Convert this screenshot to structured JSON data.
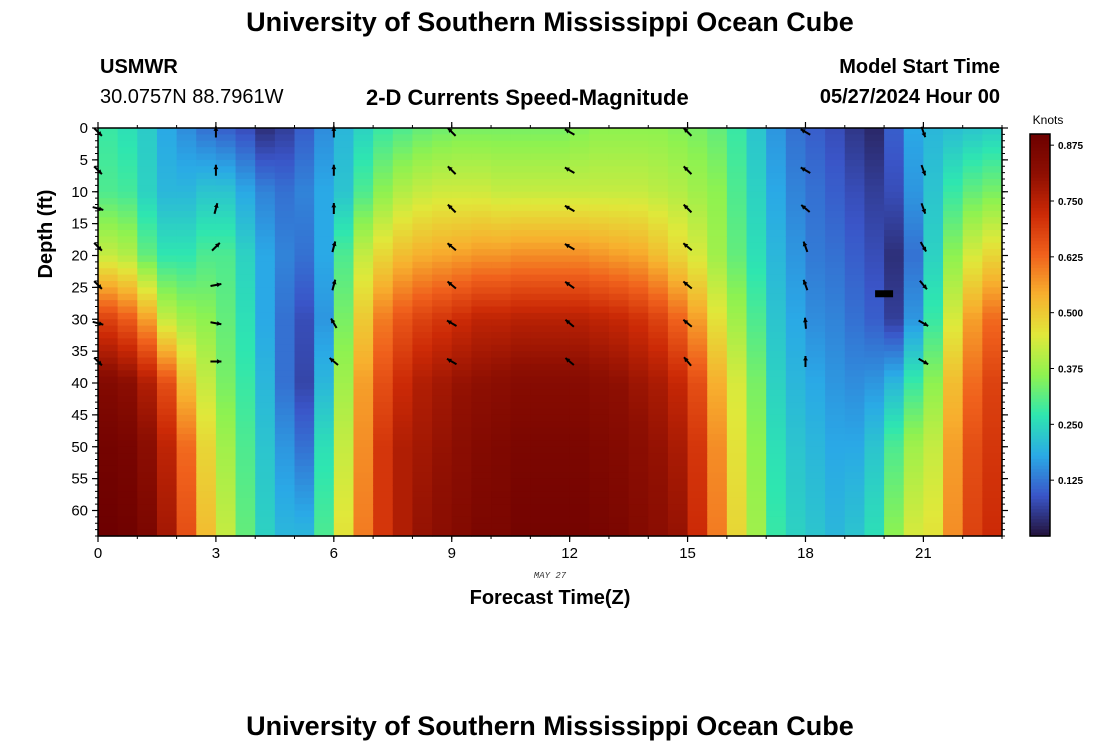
{
  "header": {
    "title": "University of Southern Mississippi Ocean Cube",
    "station_id": "USMWR",
    "coordinates": "30.0757N  88.7961W",
    "plot_type": "2-D Currents Speed-Magnitude",
    "model_start_label": "Model Start Time",
    "model_start_value": "05/27/2024 Hour 00"
  },
  "footer": {
    "title": "University of Southern Mississippi Ocean Cube"
  },
  "chart_data": {
    "type": "heatmap",
    "title": "2-D Currents Speed-Magnitude",
    "xlabel": "Forecast Time(Z)",
    "ylabel": "Depth (ft)",
    "date_label": "MAY 27",
    "x_ticks": [
      0,
      3,
      6,
      9,
      12,
      15,
      18,
      21
    ],
    "y_ticks": [
      0,
      5,
      10,
      15,
      20,
      25,
      30,
      35,
      40,
      45,
      50,
      55,
      60
    ],
    "xlim": [
      0,
      23
    ],
    "ylim": [
      0,
      64
    ],
    "colorbar": {
      "label": "Knots",
      "range": [
        0,
        0.9
      ],
      "ticks": [
        "0.125",
        "0.250",
        "0.375",
        "0.500",
        "0.625",
        "0.750",
        "0.875"
      ],
      "colors": [
        "#23123a",
        "#3a55c8",
        "#2aa9e6",
        "#2ee6b0",
        "#8ef250",
        "#e0e83a",
        "#f7b02e",
        "#f0611c",
        "#cc2a06",
        "#8e0f02",
        "#6d0000"
      ]
    },
    "speed_profiles": {
      "depth_nodes": [
        0,
        10,
        20,
        30,
        40,
        50,
        64
      ],
      "hours": [
        0,
        0.5,
        1,
        1.5,
        2,
        2.5,
        3,
        3.5,
        4,
        4.5,
        5,
        5.5,
        6,
        6.5,
        7,
        7.5,
        8,
        8.5,
        9,
        9.5,
        10,
        10.5,
        11,
        11.5,
        12,
        12.5,
        13,
        13.5,
        14,
        14.5,
        15,
        15.5,
        16,
        16.5,
        17,
        17.5,
        18,
        18.5,
        19,
        19.5,
        20,
        20.5,
        21,
        21.5,
        22,
        22.5
      ],
      "knots": [
        [
          0.28,
          0.3,
          0.42,
          0.68,
          0.84,
          0.88,
          0.9
        ],
        [
          0.26,
          0.29,
          0.4,
          0.64,
          0.82,
          0.87,
          0.89
        ],
        [
          0.23,
          0.24,
          0.32,
          0.56,
          0.76,
          0.82,
          0.86
        ],
        [
          0.18,
          0.2,
          0.27,
          0.42,
          0.66,
          0.74,
          0.78
        ],
        [
          0.15,
          0.2,
          0.27,
          0.38,
          0.52,
          0.62,
          0.66
        ],
        [
          0.12,
          0.22,
          0.3,
          0.36,
          0.42,
          0.48,
          0.52
        ],
        [
          0.1,
          0.22,
          0.3,
          0.32,
          0.34,
          0.38,
          0.42
        ],
        [
          0.08,
          0.18,
          0.24,
          0.26,
          0.28,
          0.3,
          0.32
        ],
        [
          0.04,
          0.14,
          0.18,
          0.18,
          0.2,
          0.22,
          0.24
        ],
        [
          0.06,
          0.12,
          0.14,
          0.12,
          0.12,
          0.16,
          0.2
        ],
        [
          0.1,
          0.14,
          0.12,
          0.08,
          0.07,
          0.12,
          0.2
        ],
        [
          0.15,
          0.18,
          0.18,
          0.16,
          0.2,
          0.26,
          0.3
        ],
        [
          0.2,
          0.22,
          0.3,
          0.34,
          0.38,
          0.42,
          0.46
        ],
        [
          0.24,
          0.3,
          0.42,
          0.5,
          0.56,
          0.58,
          0.6
        ],
        [
          0.28,
          0.36,
          0.48,
          0.6,
          0.66,
          0.7,
          0.7
        ],
        [
          0.3,
          0.4,
          0.52,
          0.65,
          0.72,
          0.76,
          0.76
        ],
        [
          0.32,
          0.42,
          0.54,
          0.68,
          0.76,
          0.78,
          0.8
        ],
        [
          0.33,
          0.43,
          0.55,
          0.7,
          0.78,
          0.8,
          0.82
        ],
        [
          0.34,
          0.43,
          0.56,
          0.72,
          0.8,
          0.82,
          0.84
        ],
        [
          0.34,
          0.43,
          0.57,
          0.74,
          0.81,
          0.84,
          0.86
        ],
        [
          0.34,
          0.42,
          0.57,
          0.74,
          0.82,
          0.85,
          0.86
        ],
        [
          0.34,
          0.42,
          0.58,
          0.75,
          0.83,
          0.86,
          0.88
        ],
        [
          0.34,
          0.42,
          0.58,
          0.75,
          0.83,
          0.86,
          0.88
        ],
        [
          0.34,
          0.42,
          0.58,
          0.75,
          0.83,
          0.86,
          0.88
        ],
        [
          0.35,
          0.42,
          0.58,
          0.75,
          0.83,
          0.86,
          0.88
        ],
        [
          0.36,
          0.42,
          0.57,
          0.74,
          0.82,
          0.85,
          0.87
        ],
        [
          0.36,
          0.42,
          0.56,
          0.73,
          0.81,
          0.84,
          0.86
        ],
        [
          0.36,
          0.42,
          0.55,
          0.71,
          0.79,
          0.82,
          0.84
        ],
        [
          0.36,
          0.41,
          0.52,
          0.68,
          0.77,
          0.8,
          0.82
        ],
        [
          0.35,
          0.4,
          0.48,
          0.63,
          0.73,
          0.77,
          0.8
        ],
        [
          0.34,
          0.38,
          0.44,
          0.56,
          0.66,
          0.7,
          0.72
        ],
        [
          0.32,
          0.36,
          0.38,
          0.46,
          0.54,
          0.58,
          0.6
        ],
        [
          0.28,
          0.3,
          0.32,
          0.38,
          0.44,
          0.46,
          0.48
        ],
        [
          0.22,
          0.24,
          0.26,
          0.3,
          0.34,
          0.36,
          0.38
        ],
        [
          0.16,
          0.18,
          0.2,
          0.22,
          0.24,
          0.26,
          0.28
        ],
        [
          0.12,
          0.14,
          0.16,
          0.18,
          0.2,
          0.22,
          0.24
        ],
        [
          0.1,
          0.12,
          0.13,
          0.15,
          0.18,
          0.2,
          0.22
        ],
        [
          0.08,
          0.1,
          0.12,
          0.14,
          0.16,
          0.18,
          0.2
        ],
        [
          0.05,
          0.08,
          0.1,
          0.12,
          0.15,
          0.18,
          0.22
        ],
        [
          0.03,
          0.06,
          0.08,
          0.1,
          0.16,
          0.22,
          0.26
        ],
        [
          0.1,
          0.08,
          0.04,
          0.06,
          0.2,
          0.3,
          0.36
        ],
        [
          0.18,
          0.16,
          0.12,
          0.16,
          0.28,
          0.38,
          0.44
        ],
        [
          0.2,
          0.22,
          0.24,
          0.28,
          0.36,
          0.42,
          0.46
        ],
        [
          0.21,
          0.28,
          0.36,
          0.44,
          0.52,
          0.56,
          0.58
        ],
        [
          0.22,
          0.32,
          0.44,
          0.56,
          0.62,
          0.66,
          0.68
        ],
        [
          0.23,
          0.34,
          0.48,
          0.62,
          0.68,
          0.7,
          0.72
        ]
      ]
    },
    "vectors": {
      "hours": [
        0,
        3,
        6,
        9,
        12,
        15,
        18,
        21
      ],
      "depths": [
        0,
        6,
        12,
        18,
        24,
        30,
        36
      ],
      "directions_deg": [
        [
          135,
          135,
          105,
          135,
          135,
          105,
          135
        ],
        [
          0,
          0,
          15,
          45,
          80,
          100,
          90
        ],
        [
          0,
          0,
          0,
          15,
          15,
          330,
          310
        ],
        [
          315,
          315,
          315,
          310,
          310,
          300,
          300
        ],
        [
          300,
          300,
          300,
          300,
          305,
          310,
          310
        ],
        [
          315,
          315,
          315,
          310,
          310,
          310,
          320
        ],
        [
          300,
          300,
          310,
          340,
          340,
          355,
          0
        ],
        [
          160,
          160,
          160,
          150,
          140,
          120,
          120
        ]
      ]
    },
    "marker": {
      "hour": 20,
      "depth": 26
    }
  }
}
